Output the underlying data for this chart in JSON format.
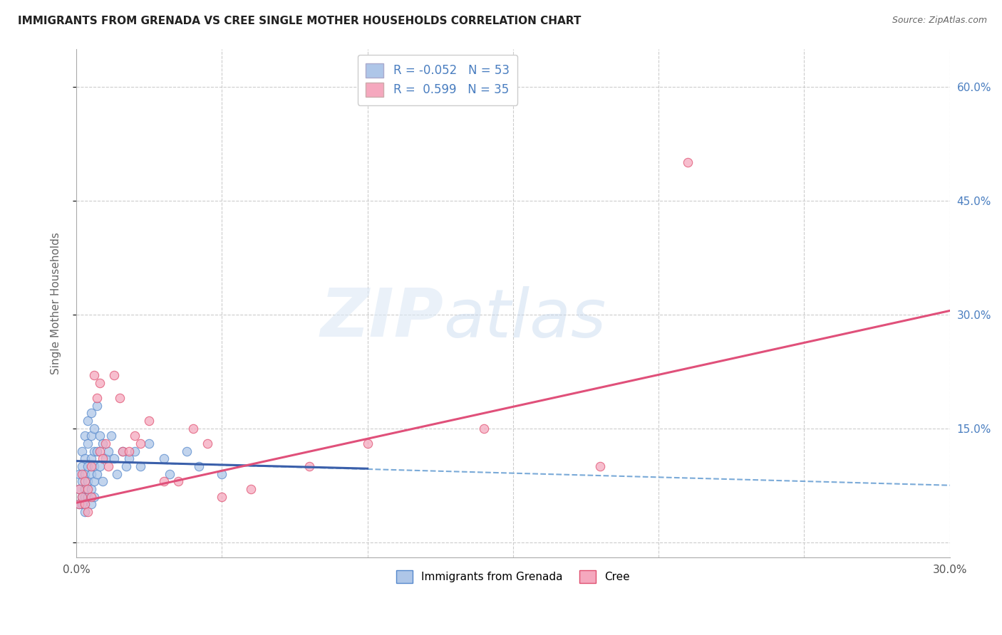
{
  "title": "IMMIGRANTS FROM GRENADA VS CREE SINGLE MOTHER HOUSEHOLDS CORRELATION CHART",
  "source": "Source: ZipAtlas.com",
  "ylabel": "Single Mother Households",
  "xlim": [
    0.0,
    0.3
  ],
  "ylim": [
    -0.02,
    0.65
  ],
  "yticks": [
    0.0,
    0.15,
    0.3,
    0.45,
    0.6
  ],
  "xticks": [
    0.0,
    0.05,
    0.1,
    0.15,
    0.2,
    0.25,
    0.3
  ],
  "background_color": "#ffffff",
  "legend_R1": "R = -0.052",
  "legend_N1": "N = 53",
  "legend_R2": "R =  0.599",
  "legend_N2": "N = 35",
  "color_blue": "#aec6e8",
  "color_pink": "#f5a8be",
  "color_blue_dark": "#5588cc",
  "color_pink_dark": "#e05070",
  "line_blue": "#3a5faa",
  "line_pink": "#e0507a",
  "line_blue_dashed": "#7aaad8",
  "grenada_scatter_x": [
    0.001,
    0.001,
    0.001,
    0.002,
    0.002,
    0.002,
    0.002,
    0.002,
    0.003,
    0.003,
    0.003,
    0.003,
    0.003,
    0.003,
    0.004,
    0.004,
    0.004,
    0.004,
    0.004,
    0.005,
    0.005,
    0.005,
    0.005,
    0.005,
    0.005,
    0.006,
    0.006,
    0.006,
    0.006,
    0.006,
    0.007,
    0.007,
    0.007,
    0.008,
    0.008,
    0.009,
    0.009,
    0.01,
    0.011,
    0.012,
    0.013,
    0.014,
    0.016,
    0.017,
    0.018,
    0.02,
    0.022,
    0.025,
    0.03,
    0.032,
    0.038,
    0.042,
    0.05
  ],
  "grenada_scatter_y": [
    0.09,
    0.07,
    0.05,
    0.12,
    0.1,
    0.08,
    0.06,
    0.05,
    0.14,
    0.11,
    0.09,
    0.07,
    0.06,
    0.04,
    0.16,
    0.13,
    0.1,
    0.08,
    0.06,
    0.17,
    0.14,
    0.11,
    0.09,
    0.07,
    0.05,
    0.15,
    0.12,
    0.1,
    0.08,
    0.06,
    0.18,
    0.12,
    0.09,
    0.14,
    0.1,
    0.13,
    0.08,
    0.11,
    0.12,
    0.14,
    0.11,
    0.09,
    0.12,
    0.1,
    0.11,
    0.12,
    0.1,
    0.13,
    0.11,
    0.09,
    0.12,
    0.1,
    0.09
  ],
  "cree_scatter_x": [
    0.001,
    0.001,
    0.002,
    0.002,
    0.003,
    0.003,
    0.004,
    0.004,
    0.005,
    0.005,
    0.006,
    0.007,
    0.008,
    0.008,
    0.009,
    0.01,
    0.011,
    0.013,
    0.015,
    0.016,
    0.018,
    0.02,
    0.022,
    0.025,
    0.03,
    0.035,
    0.04,
    0.045,
    0.05,
    0.06,
    0.08,
    0.1,
    0.14,
    0.18,
    0.21
  ],
  "cree_scatter_y": [
    0.07,
    0.05,
    0.09,
    0.06,
    0.08,
    0.05,
    0.07,
    0.04,
    0.1,
    0.06,
    0.22,
    0.19,
    0.21,
    0.12,
    0.11,
    0.13,
    0.1,
    0.22,
    0.19,
    0.12,
    0.12,
    0.14,
    0.13,
    0.16,
    0.08,
    0.08,
    0.15,
    0.13,
    0.06,
    0.07,
    0.1,
    0.13,
    0.15,
    0.1,
    0.5
  ],
  "grenada_solid_trend_x": [
    0.0,
    0.1
  ],
  "grenada_solid_trend_y": [
    0.107,
    0.097
  ],
  "grenada_dashed_trend_x": [
    0.0,
    0.3
  ],
  "grenada_dashed_trend_y": [
    0.107,
    0.075
  ],
  "cree_trend_x": [
    0.0,
    0.3
  ],
  "cree_trend_y": [
    0.052,
    0.305
  ]
}
